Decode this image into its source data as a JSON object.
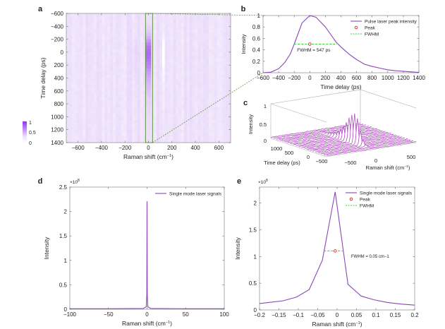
{
  "colors": {
    "line": "#8a46b8",
    "peak": "#e8241c",
    "fwhm": "#2fd02f",
    "heat_bg": "#efe3fb",
    "heat_max": "#9433f2",
    "zoom_box": "#4e8a2e"
  },
  "chart_data": [
    {
      "panel": "a",
      "type": "heatmap",
      "xlabel": "Raman shift (cm−1)",
      "ylabel": "Time delay (ps)",
      "xlim": [
        -700,
        700
      ],
      "ylim": [
        -600,
        1400
      ],
      "y_reversed": true,
      "xticks": [
        -600,
        -400,
        -200,
        0,
        200,
        400,
        600
      ],
      "yticks": [
        -600,
        -400,
        -200,
        0,
        200,
        400,
        600,
        800,
        1000,
        1200,
        1400
      ],
      "colorbar": {
        "ticks": [
          "1",
          "0.5",
          "0"
        ],
        "range": [
          0,
          1
        ]
      },
      "hotspot": {
        "raman_shift": 0,
        "time_delay_peak": 0,
        "max_intensity": 1
      },
      "zoom_region_raman": [
        -25,
        35
      ]
    },
    {
      "panel": "b",
      "type": "line",
      "xlabel": "Time delay (ps)",
      "ylabel": "Intensity",
      "xlim": [
        -600,
        1400
      ],
      "ylim": [
        0,
        1
      ],
      "xticks": [
        -600,
        -400,
        -200,
        0,
        200,
        400,
        600,
        800,
        1000,
        1200,
        1400
      ],
      "yticks": [
        0,
        0.2,
        0.4,
        0.6,
        0.8,
        1
      ],
      "series": [
        {
          "name": "Pulse laser peak intensity",
          "x": [
            -600,
            -500,
            -400,
            -320,
            -250,
            -200,
            -100,
            0,
            80,
            200,
            340,
            400,
            500,
            600,
            700,
            800,
            900,
            1000,
            1100,
            1200,
            1300,
            1400
          ],
          "y": [
            0,
            0.01,
            0.07,
            0.18,
            0.33,
            0.5,
            0.87,
            1.0,
            0.97,
            0.8,
            0.53,
            0.45,
            0.33,
            0.23,
            0.15,
            0.11,
            0.08,
            0.05,
            0.035,
            0.025,
            0.015,
            0.005
          ]
        }
      ],
      "peak": {
        "name": "Peak",
        "x": 0,
        "y": 0.5
      },
      "fwhm": {
        "name": "FWHM",
        "x": [
          -200,
          347
        ],
        "y": 0.5,
        "label": "FWHM = 547 ps"
      },
      "legend": "top-right"
    },
    {
      "panel": "c",
      "type": "waterfall-3d",
      "xlabel": "Raman shift (cm−1)",
      "ylabel": "Time delay (ps)",
      "zlabel": "Intensity",
      "xlim": [
        -700,
        700
      ],
      "ylim": [
        -600,
        1400
      ],
      "zlim": [
        0,
        1
      ],
      "xticks": [
        "-500",
        "0",
        "500"
      ],
      "yticks": [
        "1000",
        "500",
        "0",
        "-500"
      ],
      "zticks": [
        "1",
        "0.5",
        "0"
      ]
    },
    {
      "panel": "d",
      "type": "line",
      "xlabel": "Raman shift (cm−1)",
      "ylabel": "Intensity",
      "yscale_label": "×10",
      "yscale_exp": "8",
      "xlim": [
        -100,
        100
      ],
      "ylim": [
        0,
        2.5
      ],
      "xticks": [
        -100,
        -50,
        0,
        50,
        100
      ],
      "yticks": [
        0,
        0.5,
        1,
        1.5,
        2,
        2.5
      ],
      "series": [
        {
          "name": "Single mode laser signals",
          "x": [
            -100,
            -50,
            -5,
            -1,
            -0.3,
            0,
            0.3,
            1,
            5,
            50,
            100
          ],
          "y": [
            0.01,
            0.01,
            0.015,
            0.05,
            0.3,
            2.21,
            0.3,
            0.05,
            0.015,
            0.01,
            0.01
          ]
        }
      ],
      "legend": "top-right"
    },
    {
      "panel": "e",
      "type": "line",
      "xlabel": "Raman shift (cm−1)",
      "ylabel": "Intensity",
      "yscale_label": "×10",
      "yscale_exp": "8",
      "xlim": [
        -0.2,
        0.2
      ],
      "ylim": [
        0,
        2.3
      ],
      "xticks": [
        -0.2,
        -0.15,
        -0.1,
        -0.05,
        0,
        0.05,
        0.1,
        0.15,
        0.2
      ],
      "yticks": [
        0,
        0.5,
        1,
        1.5,
        2
      ],
      "series": [
        {
          "name": "Single mode laser signals",
          "x": [
            -0.2,
            -0.14,
            -0.105,
            -0.072,
            -0.038,
            -0.005,
            0.028,
            0.062,
            0.095,
            0.13,
            0.165,
            0.2
          ],
          "y": [
            0.12,
            0.17,
            0.24,
            0.38,
            0.93,
            2.21,
            0.48,
            0.26,
            0.19,
            0.14,
            0.11,
            0.09
          ]
        }
      ],
      "peak": {
        "name": "Peak",
        "x": -0.005,
        "y": 1.105
      },
      "fwhm": {
        "name": "FWHM",
        "x": [
          -0.034,
          0.017
        ],
        "y": 1.105,
        "label": "FWHM = 0.05 cm−1"
      },
      "legend": "top-right"
    }
  ]
}
